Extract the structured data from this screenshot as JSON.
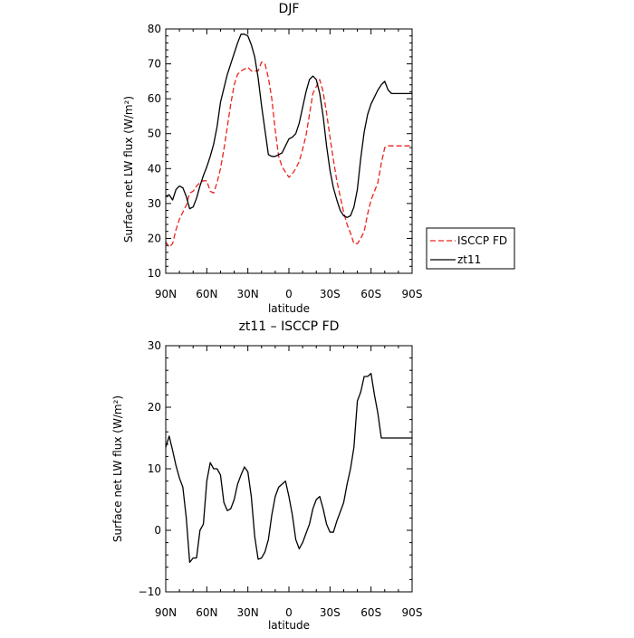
{
  "chart_data": [
    {
      "type": "line",
      "title": "DJF",
      "xlabel": "latitude",
      "ylabel": "Surface net LW flux (W/m²)",
      "xlim": [
        90,
        -90
      ],
      "ylim": [
        10,
        80
      ],
      "x_ticks": [
        90,
        60,
        30,
        0,
        -30,
        -60,
        -90
      ],
      "x_tick_labels": [
        "90N",
        "60N",
        "30N",
        "0",
        "30S",
        "60S",
        "90S"
      ],
      "y_ticks": [
        10,
        20,
        30,
        40,
        50,
        60,
        70,
        80
      ],
      "y_tick_labels": [
        "10",
        "20",
        "30",
        "40",
        "50",
        "60",
        "70",
        "80"
      ],
      "legend_position": "right",
      "series": [
        {
          "name": "ISCCP FD",
          "color": "#e8251f",
          "style": "dashed",
          "x": [
            90,
            87.5,
            85,
            82.5,
            80,
            77.5,
            75,
            72.5,
            70,
            67.5,
            65,
            62.5,
            60,
            57.5,
            55,
            52.5,
            50,
            47.5,
            45,
            42.5,
            40,
            37.5,
            35,
            32.5,
            30,
            27.5,
            25,
            22.5,
            20,
            17.5,
            15,
            12.5,
            10,
            7.5,
            5,
            2.5,
            0,
            -2.5,
            -5,
            -7.5,
            -10,
            -12.5,
            -15,
            -17.5,
            -20,
            -22.5,
            -25,
            -27.5,
            -30,
            -32.5,
            -35,
            -37.5,
            -40,
            -42.5,
            -45,
            -47.5,
            -50,
            -52.5,
            -55,
            -57.5,
            -60,
            -62.5,
            -65,
            -67.5,
            -70,
            -72.5,
            -75,
            -77.5,
            -80,
            -82.5,
            -85,
            -87.5,
            -90
          ],
          "y": [
            19,
            17.5,
            18.5,
            22.5,
            25.5,
            27.5,
            29.5,
            33,
            33.5,
            35,
            36,
            36.5,
            36.5,
            33.5,
            33,
            36,
            40,
            45.5,
            52,
            58.5,
            64,
            67,
            68,
            68.5,
            69,
            68,
            68,
            68,
            70.5,
            70,
            66,
            60,
            51,
            43.5,
            40.5,
            39,
            37.5,
            38.5,
            40,
            42,
            45.5,
            49.5,
            55.5,
            61.5,
            63.5,
            65.5,
            62,
            56,
            49,
            42.5,
            36.5,
            32,
            27.5,
            24,
            21.5,
            18.5,
            18.5,
            20,
            22,
            27,
            31,
            33.5,
            36,
            41.5,
            46,
            46.5,
            46.5,
            46.5,
            46.5,
            46.5,
            46.5,
            46.5,
            46.5
          ]
        },
        {
          "name": "zt11",
          "color": "#000000",
          "style": "solid",
          "x": [
            90,
            87.5,
            85,
            82.5,
            80,
            77.5,
            75,
            72.5,
            70,
            67.5,
            65,
            62.5,
            60,
            57.5,
            55,
            52.5,
            50,
            47.5,
            45,
            42.5,
            40,
            37.5,
            35,
            32.5,
            30,
            27.5,
            25,
            22.5,
            20,
            17.5,
            15,
            12.5,
            10,
            7.5,
            5,
            2.5,
            0,
            -2.5,
            -5,
            -7.5,
            -10,
            -12.5,
            -15,
            -17.5,
            -20,
            -22.5,
            -25,
            -27.5,
            -30,
            -32.5,
            -35,
            -37.5,
            -40,
            -42.5,
            -45,
            -47.5,
            -50,
            -52.5,
            -55,
            -57.5,
            -60,
            -62.5,
            -65,
            -67.5,
            -70,
            -72.5,
            -75,
            -77.5,
            -80,
            -82.5,
            -85,
            -87.5,
            -90
          ],
          "y": [
            32,
            32.5,
            31,
            34,
            35,
            34.5,
            32,
            28.5,
            29,
            31.5,
            35,
            38,
            40.5,
            43.5,
            47,
            52,
            59,
            63,
            67,
            70,
            73,
            76,
            78.5,
            78.5,
            78,
            75.5,
            72,
            66,
            58,
            51,
            44,
            43.5,
            43.5,
            44,
            44.5,
            46.5,
            48.5,
            49,
            50,
            53,
            57.5,
            62,
            65.5,
            66.5,
            65.5,
            61.5,
            55,
            46.5,
            39.5,
            34.5,
            31,
            28,
            26.5,
            26,
            26.5,
            29,
            34,
            43,
            50.5,
            55.5,
            58.5,
            60.5,
            62.5,
            64,
            65,
            62.5,
            61.5,
            61.5,
            61.5,
            61.5,
            61.5,
            61.5,
            61.5
          ]
        }
      ]
    },
    {
      "type": "line",
      "title": "zt11 – ISCCP FD",
      "xlabel": "latitude",
      "ylabel": "Surface net LW flux (W/m²)",
      "xlim": [
        90,
        -90
      ],
      "ylim": [
        -10,
        30
      ],
      "x_ticks": [
        90,
        60,
        30,
        0,
        -30,
        -60,
        -90
      ],
      "x_tick_labels": [
        "90N",
        "60N",
        "30N",
        "0",
        "30S",
        "60S",
        "90S"
      ],
      "y_ticks": [
        -10,
        0,
        10,
        20,
        30
      ],
      "y_tick_labels": [
        "−10",
        "0",
        "10",
        "20",
        "30"
      ],
      "series": [
        {
          "color": "#000000",
          "style": "solid",
          "x": [
            90,
            87.5,
            85,
            82.5,
            80,
            77.5,
            75,
            72.5,
            70,
            67.5,
            65,
            62.5,
            60,
            57.5,
            55,
            52.5,
            50,
            47.5,
            45,
            42.5,
            40,
            37.5,
            35,
            32.5,
            30,
            27.5,
            25,
            22.5,
            20,
            17.5,
            15,
            12.5,
            10,
            7.5,
            5,
            2.5,
            0,
            -2.5,
            -5,
            -7.5,
            -10,
            -12.5,
            -15,
            -17.5,
            -20,
            -22.5,
            -25,
            -27.5,
            -30,
            -32.5,
            -35,
            -37.5,
            -40,
            -42.5,
            -45,
            -47.5,
            -50,
            -52.5,
            -55,
            -57.5,
            -60,
            -62.5,
            -65,
            -67.5,
            -70,
            -72.5,
            -75,
            -77.5,
            -80,
            -82.5,
            -85,
            -87.5,
            -90
          ],
          "y": [
            13.5,
            15.3,
            13,
            10.5,
            8.5,
            7,
            2,
            -5.2,
            -4.5,
            -4.5,
            0,
            1,
            8,
            11,
            10,
            10,
            9,
            4.5,
            3.2,
            3.5,
            5,
            7.5,
            9,
            10.3,
            9.5,
            5.5,
            -1,
            -4.7,
            -4.5,
            -3.5,
            -1.5,
            2.5,
            5.5,
            7,
            7.5,
            8,
            5.5,
            2.5,
            -1.5,
            -3,
            -2,
            -0.5,
            1,
            3.5,
            5,
            5.5,
            3.5,
            1,
            -0.3,
            -0.3,
            1.5,
            3,
            4.5,
            7.5,
            10,
            13.5,
            21,
            22.5,
            25,
            25,
            25.5,
            22,
            19,
            15,
            15,
            15,
            15,
            15,
            15,
            15,
            15,
            15,
            15
          ]
        }
      ]
    }
  ]
}
